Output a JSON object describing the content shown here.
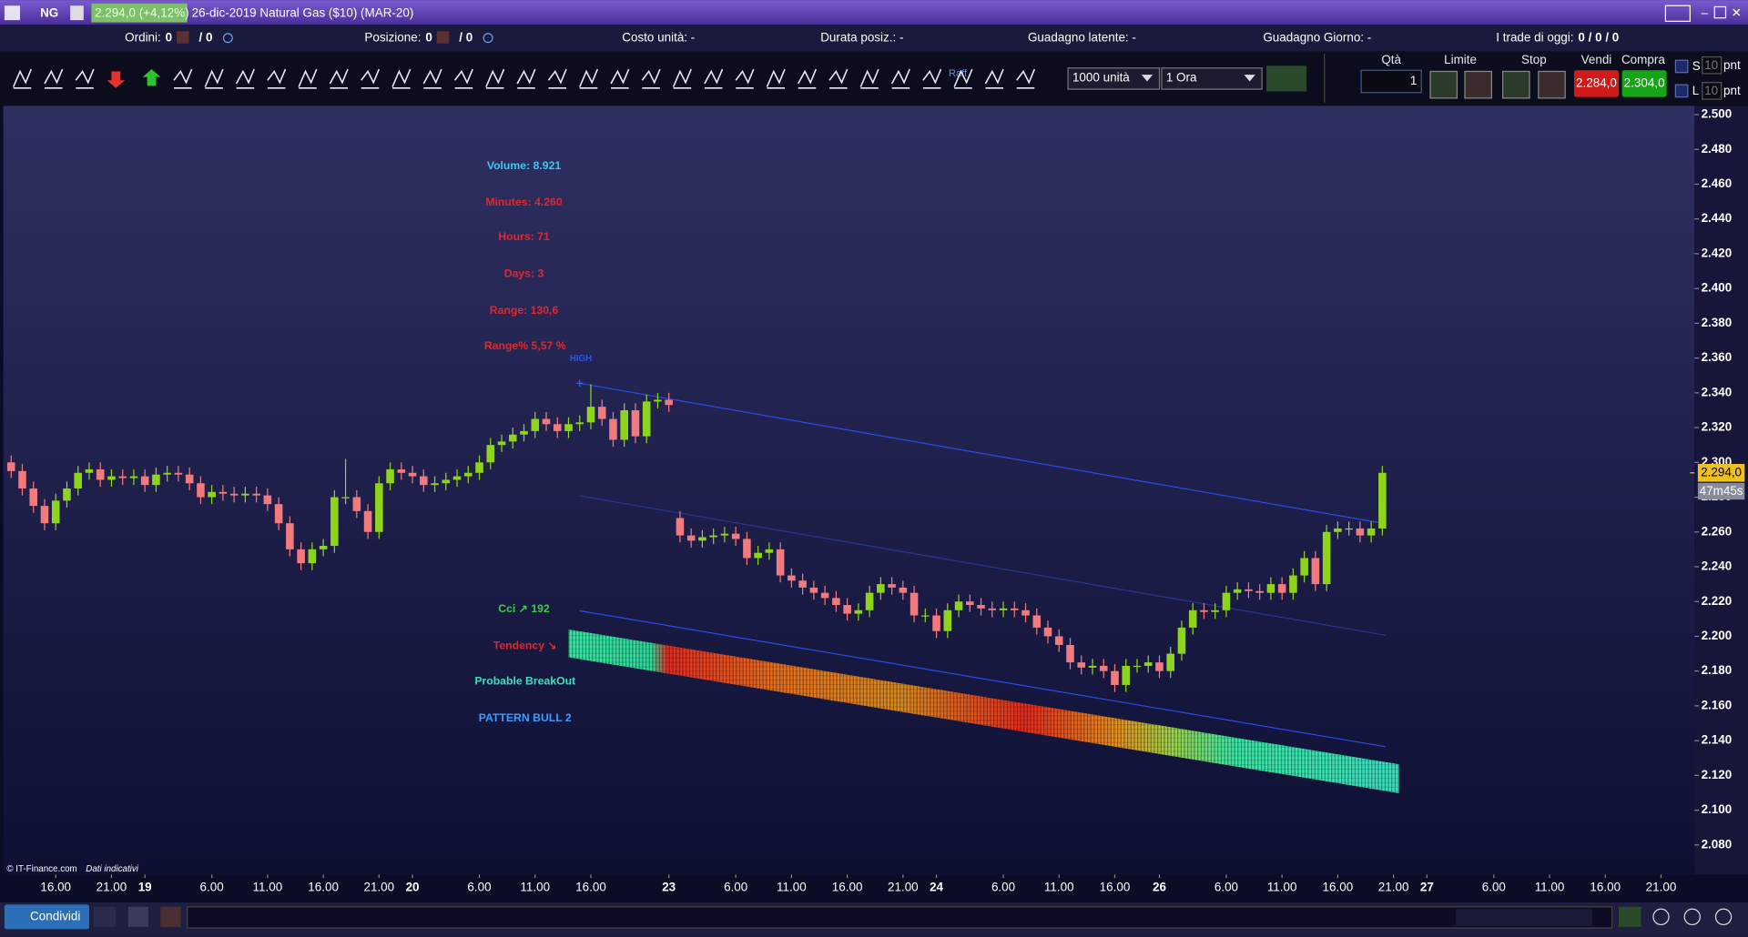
{
  "header": {
    "symbol": "NG",
    "quote": "2.294,0 (+4,12%)",
    "title": "26-dic-2019 Natural Gas ($10) (MAR-20)"
  },
  "status": [
    {
      "label": "Ordini:",
      "value": "0",
      "extra": "/ 0"
    },
    {
      "label": "Posizione:",
      "value": "0",
      "extra": "/ 0"
    },
    {
      "label": "Costo unità: -"
    },
    {
      "label": "Durata posiz.: -"
    },
    {
      "label": "Guadagno latente: -"
    },
    {
      "label": "Guadagno Giorno: -"
    },
    {
      "label": "I trade di oggi:",
      "value": "0 / 0 / 0"
    }
  ],
  "toolbar": {
    "quantity_select": "1000 unità",
    "timeframe_select": "1 Ora",
    "qty_label": "Qtà",
    "qty": "1",
    "limit_label": "Limite",
    "stop_label": "Stop",
    "sell_label": "Vendi",
    "buy_label": "Compra",
    "sell_price": "2.284,0",
    "buy_price": "2.304,0",
    "s": "S",
    "l": "L",
    "pnt_value": "10",
    "pnt_label": "pnt",
    "raff": "Raff"
  },
  "footer": {
    "copyright": "© IT-Finance.com",
    "note": "Dati indicativi",
    "share": "Condividi"
  },
  "chart_data": {
    "type": "candlestick",
    "up_color": "#8fd41c",
    "down_color": "#f07a7e",
    "grid": false,
    "open": [
      2.3,
      2.295,
      2.285,
      2.275,
      2.265,
      2.278,
      2.285,
      2.294,
      2.296,
      2.29,
      2.292,
      2.291,
      2.292,
      2.287,
      2.293,
      2.294,
      2.293,
      2.288,
      2.28,
      2.283,
      2.282,
      2.281,
      2.282,
      2.281,
      2.276,
      2.265,
      2.25,
      2.242,
      2.25,
      2.252,
      2.28,
      2.28,
      2.272,
      2.26,
      2.288,
      2.296,
      2.294,
      2.292,
      2.287,
      2.288,
      2.29,
      2.292,
      2.294,
      2.3,
      2.31,
      2.312,
      2.316,
      2.318,
      2.325,
      2.322,
      2.318,
      2.322,
      2.323,
      2.332,
      2.325,
      2.313,
      2.33,
      2.315,
      2.335,
      2.336,
      2.268,
      2.258,
      2.255,
      2.257,
      2.258,
      2.259,
      2.256,
      2.245,
      2.248,
      2.25,
      2.235,
      2.232,
      2.228,
      2.225,
      2.222,
      2.218,
      2.213,
      2.215,
      2.225,
      2.23,
      2.228,
      2.225,
      2.212,
      2.212,
      2.203,
      2.215,
      2.22,
      2.218,
      2.216,
      2.215,
      2.216,
      2.215,
      2.212,
      2.205,
      2.2,
      2.195,
      2.185,
      2.182,
      2.183,
      2.18,
      2.172,
      2.183,
      2.183,
      2.185,
      2.18,
      2.19,
      2.205,
      2.215,
      2.214,
      2.215,
      2.225,
      2.227,
      2.226,
      2.225,
      2.23,
      2.225,
      2.235,
      2.245,
      2.23,
      2.26,
      2.262,
      2.262,
      2.258,
      2.262
    ],
    "high": [
      2.304,
      2.299,
      2.289,
      2.279,
      2.282,
      2.289,
      2.298,
      2.3,
      2.3,
      2.296,
      2.296,
      2.296,
      2.296,
      2.297,
      2.298,
      2.298,
      2.297,
      2.292,
      2.287,
      2.287,
      2.286,
      2.286,
      2.286,
      2.285,
      2.28,
      2.269,
      2.254,
      2.254,
      2.256,
      2.284,
      2.302,
      2.284,
      2.276,
      2.292,
      2.3,
      2.3,
      2.298,
      2.296,
      2.292,
      2.294,
      2.296,
      2.298,
      2.304,
      2.314,
      2.316,
      2.32,
      2.322,
      2.329,
      2.329,
      2.326,
      2.326,
      2.327,
      2.345,
      2.336,
      2.329,
      2.334,
      2.334,
      2.339,
      2.34,
      2.34,
      2.272,
      2.262,
      2.261,
      2.262,
      2.263,
      2.263,
      2.26,
      2.252,
      2.254,
      2.254,
      2.239,
      2.236,
      2.232,
      2.229,
      2.226,
      2.222,
      2.219,
      2.229,
      2.234,
      2.234,
      2.232,
      2.229,
      2.216,
      2.216,
      2.219,
      2.224,
      2.224,
      2.222,
      2.22,
      2.22,
      2.22,
      2.219,
      2.216,
      2.209,
      2.204,
      2.199,
      2.189,
      2.187,
      2.187,
      2.184,
      2.187,
      2.187,
      2.189,
      2.189,
      2.194,
      2.209,
      2.219,
      2.219,
      2.219,
      2.229,
      2.231,
      2.231,
      2.23,
      2.234,
      2.234,
      2.239,
      2.249,
      2.249,
      2.264,
      2.266,
      2.266,
      2.266,
      2.266,
      2.298
    ],
    "low": [
      2.291,
      2.281,
      2.271,
      2.261,
      2.261,
      2.274,
      2.281,
      2.29,
      2.286,
      2.286,
      2.287,
      2.287,
      2.283,
      2.283,
      2.289,
      2.289,
      2.284,
      2.276,
      2.276,
      2.278,
      2.277,
      2.277,
      2.277,
      2.272,
      2.261,
      2.246,
      2.238,
      2.238,
      2.246,
      2.248,
      2.276,
      2.268,
      2.256,
      2.256,
      2.284,
      2.29,
      2.288,
      2.283,
      2.283,
      2.284,
      2.286,
      2.288,
      2.29,
      2.296,
      2.306,
      2.308,
      2.312,
      2.314,
      2.318,
      2.314,
      2.314,
      2.318,
      2.319,
      2.321,
      2.309,
      2.309,
      2.311,
      2.311,
      2.331,
      2.329,
      2.254,
      2.251,
      2.251,
      2.253,
      2.254,
      2.252,
      2.241,
      2.241,
      2.244,
      2.231,
      2.228,
      2.224,
      2.221,
      2.218,
      2.214,
      2.209,
      2.209,
      2.211,
      2.221,
      2.224,
      2.221,
      2.208,
      2.208,
      2.199,
      2.199,
      2.211,
      2.214,
      2.212,
      2.211,
      2.211,
      2.211,
      2.208,
      2.201,
      2.196,
      2.191,
      2.181,
      2.178,
      2.178,
      2.176,
      2.168,
      2.168,
      2.179,
      2.179,
      2.176,
      2.176,
      2.186,
      2.201,
      2.21,
      2.21,
      2.211,
      2.221,
      2.222,
      2.221,
      2.221,
      2.221,
      2.221,
      2.231,
      2.226,
      2.226,
      2.256,
      2.258,
      2.254,
      2.254,
      2.258
    ],
    "close": [
      2.295,
      2.285,
      2.275,
      2.265,
      2.278,
      2.285,
      2.294,
      2.296,
      2.29,
      2.292,
      2.291,
      2.292,
      2.287,
      2.293,
      2.294,
      2.293,
      2.288,
      2.28,
      2.283,
      2.282,
      2.281,
      2.282,
      2.281,
      2.276,
      2.265,
      2.25,
      2.242,
      2.25,
      2.252,
      2.28,
      2.28,
      2.272,
      2.26,
      2.288,
      2.296,
      2.294,
      2.292,
      2.287,
      2.288,
      2.29,
      2.292,
      2.294,
      2.3,
      2.31,
      2.312,
      2.316,
      2.318,
      2.325,
      2.322,
      2.318,
      2.322,
      2.323,
      2.332,
      2.325,
      2.313,
      2.33,
      2.315,
      2.335,
      2.336,
      2.333,
      2.258,
      2.255,
      2.257,
      2.258,
      2.259,
      2.256,
      2.245,
      2.248,
      2.25,
      2.235,
      2.232,
      2.228,
      2.225,
      2.222,
      2.218,
      2.213,
      2.215,
      2.225,
      2.23,
      2.228,
      2.225,
      2.212,
      2.212,
      2.203,
      2.215,
      2.22,
      2.218,
      2.216,
      2.215,
      2.216,
      2.215,
      2.212,
      2.205,
      2.2,
      2.195,
      2.185,
      2.182,
      2.183,
      2.18,
      2.172,
      2.183,
      2.183,
      2.185,
      2.18,
      2.19,
      2.205,
      2.215,
      2.214,
      2.215,
      2.225,
      2.227,
      2.226,
      2.225,
      2.23,
      2.225,
      2.235,
      2.245,
      2.23,
      2.26,
      2.262,
      2.262,
      2.258,
      2.262,
      2.294
    ],
    "xlim": [
      -0.7,
      151
    ],
    "ylim": [
      2.063,
      2.505
    ],
    "xticks": [
      {
        "value": 4,
        "label": "16.00"
      },
      {
        "value": 9,
        "label": "21.00"
      },
      {
        "value": 12,
        "label": "19"
      },
      {
        "value": 18,
        "label": "6.00"
      },
      {
        "value": 23,
        "label": "11.00"
      },
      {
        "value": 28,
        "label": "16.00"
      },
      {
        "value": 33,
        "label": "21.00"
      },
      {
        "value": 36,
        "label": "20"
      },
      {
        "value": 42,
        "label": "6.00"
      },
      {
        "value": 47,
        "label": "11.00"
      },
      {
        "value": 52,
        "label": "16.00"
      },
      {
        "value": 59,
        "label": "23"
      },
      {
        "value": 65,
        "label": "6.00"
      },
      {
        "value": 70,
        "label": "11.00"
      },
      {
        "value": 75,
        "label": "16.00"
      },
      {
        "value": 80,
        "label": "21.00"
      },
      {
        "value": 83,
        "label": "24"
      },
      {
        "value": 89,
        "label": "6.00"
      },
      {
        "value": 94,
        "label": "11.00"
      },
      {
        "value": 99,
        "label": "16.00"
      },
      {
        "value": 103,
        "label": "26"
      },
      {
        "value": 109,
        "label": "6.00"
      },
      {
        "value": 114,
        "label": "11.00"
      },
      {
        "value": 119,
        "label": "16.00"
      },
      {
        "value": 124,
        "label": "21.00"
      },
      {
        "value": 127,
        "label": "27"
      },
      {
        "value": 133,
        "label": "6.00"
      },
      {
        "value": 138,
        "label": "11.00"
      },
      {
        "value": 143,
        "label": "16.00"
      },
      {
        "value": 148,
        "label": "21.00"
      }
    ],
    "yticks": [
      {
        "value": 2.08,
        "label": "2.080"
      },
      {
        "value": 2.1,
        "label": "2.100"
      },
      {
        "value": 2.12,
        "label": "2.120"
      },
      {
        "value": 2.14,
        "label": "2.140"
      },
      {
        "value": 2.16,
        "label": "2.160"
      },
      {
        "value": 2.18,
        "label": "2.180"
      },
      {
        "value": 2.2,
        "label": "2.200"
      },
      {
        "value": 2.22,
        "label": "2.220"
      },
      {
        "value": 2.24,
        "label": "2.240"
      },
      {
        "value": 2.26,
        "label": "2.260"
      },
      {
        "value": 2.28,
        "label": "2.280"
      },
      {
        "value": 2.3,
        "label": "2.300"
      },
      {
        "value": 2.32,
        "label": "2.320"
      },
      {
        "value": 2.34,
        "label": "2.340"
      },
      {
        "value": 2.36,
        "label": "2.360"
      },
      {
        "value": 2.38,
        "label": "2.380"
      },
      {
        "value": 2.4,
        "label": "2.400"
      },
      {
        "value": 2.42,
        "label": "2.420"
      },
      {
        "value": 2.44,
        "label": "2.440"
      },
      {
        "value": 2.46,
        "label": "2.460"
      },
      {
        "value": 2.48,
        "label": "2.480"
      },
      {
        "value": 2.5,
        "label": "2.500"
      }
    ],
    "trendlines": [
      {
        "x": [
          51,
          123.3
        ],
        "y": [
          2.3455,
          2.2647
        ],
        "color": "#2a4be8"
      },
      {
        "x": [
          51,
          123.3
        ],
        "y": [
          2.2808,
          2.2006
        ],
        "color": "#2a3590"
      },
      {
        "x": [
          51,
          123.3
        ],
        "y": [
          2.2147,
          2.1365
        ],
        "color": "#2a4be8"
      }
    ],
    "last_price": {
      "value": 2.294,
      "label": "2.294,0"
    },
    "timer": "47m45s",
    "annotations": [
      {
        "text": "Volume: 8.921",
        "color": "#3cc8ee"
      },
      {
        "text": "Minutes: 4.260",
        "color": "#e0282c"
      },
      {
        "text": "Hours: 71",
        "color": "#e0282c"
      },
      {
        "text": "Days: 3",
        "color": "#e0282c"
      },
      {
        "text": "Range: 130,6",
        "color": "#e0282c"
      },
      {
        "text": "Range% 5,57 %",
        "color": "#e0282c"
      },
      {
        "text": "HIGH",
        "color": "#2a55ee"
      },
      {
        "text": "Cci ↗  192",
        "color": "#3ccf3c"
      },
      {
        "text": "Tendency ↘",
        "color": "#e0282c"
      },
      {
        "text": "Probable BreakOut",
        "color": "#3ce0b8"
      },
      {
        "text": "PATTERN BULL 2",
        "color": "#3c9cff"
      }
    ]
  }
}
